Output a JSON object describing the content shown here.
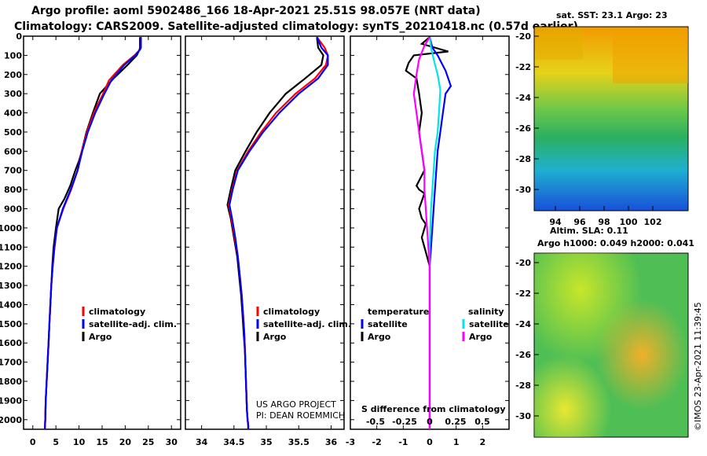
{
  "header": {
    "title_line1": "Argo profile: aoml 5902486_166 18-Apr-2021 25.51S 98.057E (NRT data)",
    "title_line2": "Climatology: CARS2009. Satellite-adjusted climatology: synTS_20210418.nc (0.57d earlier)"
  },
  "colors": {
    "climatology": "#ff0000",
    "satellite": "#0000ff",
    "argo": "#000000",
    "salinity_sat": "#00e5e5",
    "salinity_argo": "#ff00ff"
  },
  "chart_data": [
    {
      "type": "line",
      "name": "temperature-profile",
      "xlabel": "",
      "ylabel": "",
      "xlim": [
        -2,
        32
      ],
      "ylim": [
        2050,
        0
      ],
      "xticks": [
        "0",
        "5",
        "10",
        "15",
        "20",
        "25",
        "30"
      ],
      "xtick_values": [
        0,
        5,
        10,
        15,
        20,
        25,
        30
      ],
      "yticks": [
        "0",
        "100",
        "200",
        "300",
        "400",
        "500",
        "600",
        "700",
        "800",
        "900",
        "1000",
        "1100",
        "1200",
        "1300",
        "1400",
        "1500",
        "1600",
        "1700",
        "1800",
        "1900",
        "2000"
      ],
      "legend": [
        "climatology",
        "satellite-adj. clim.",
        "Argo"
      ],
      "series": [
        {
          "name": "Argo",
          "color": "#000000",
          "x": [
            23.2,
            23.2,
            23.1,
            22.5,
            20.5,
            17.5,
            14.5,
            13.0,
            11.6,
            10.6,
            10.0,
            9.2,
            8.1,
            6.8,
            5.6,
            5.0,
            4.5,
            4.2,
            4.0,
            3.8,
            3.6,
            3.4,
            3.2,
            3.0,
            2.8,
            2.7,
            2.6
          ],
          "y": [
            5,
            60,
            70,
            100,
            150,
            220,
            300,
            400,
            500,
            600,
            650,
            700,
            780,
            850,
            900,
            1000,
            1100,
            1200,
            1300,
            1400,
            1500,
            1600,
            1700,
            1800,
            1900,
            2000,
            2050
          ]
        },
        {
          "name": "climatology",
          "color": "#ff0000",
          "x": [
            23.4,
            23.4,
            23.2,
            22.0,
            19.5,
            16.5,
            15.2,
            13.2,
            11.7,
            10.6,
            9.7,
            8.3,
            6.6,
            5.2,
            4.7,
            4.3,
            4.0,
            3.8,
            3.6,
            3.4,
            3.2,
            3.0,
            2.8,
            2.7,
            2.6
          ],
          "y": [
            5,
            60,
            70,
            100,
            150,
            230,
            300,
            400,
            500,
            600,
            700,
            800,
            900,
            1000,
            1100,
            1200,
            1300,
            1400,
            1500,
            1600,
            1700,
            1800,
            1900,
            2000,
            2050
          ]
        },
        {
          "name": "satellite-adj. clim.",
          "color": "#0000ff",
          "x": [
            23.4,
            23.4,
            23.2,
            22.2,
            19.8,
            17.0,
            15.5,
            13.5,
            11.9,
            10.7,
            9.7,
            8.2,
            6.5,
            5.2,
            4.7,
            4.3,
            4.0,
            3.8,
            3.6,
            3.4,
            3.2,
            3.0,
            2.8,
            2.7,
            2.6
          ],
          "y": [
            5,
            60,
            70,
            100,
            150,
            230,
            300,
            400,
            500,
            600,
            700,
            800,
            900,
            1000,
            1100,
            1200,
            1300,
            1400,
            1500,
            1600,
            1700,
            1800,
            1900,
            2000,
            2050
          ]
        }
      ]
    },
    {
      "type": "line",
      "name": "salinity-profile",
      "xlabel": "",
      "ylabel": "",
      "xlim": [
        33.75,
        36.2
      ],
      "ylim": [
        2050,
        0
      ],
      "xticks": [
        "34",
        "34.5",
        "35",
        "35.5",
        "36"
      ],
      "xtick_values": [
        34,
        34.5,
        35,
        35.5,
        36
      ],
      "legend": [
        "climatology",
        "satellite-adj. clim.",
        "Argo"
      ],
      "annotations": [
        "US ARGO PROJECT",
        "PI: DEAN ROEMMICH"
      ],
      "series": [
        {
          "name": "Argo",
          "color": "#000000",
          "x": [
            35.78,
            35.8,
            35.88,
            35.85,
            35.6,
            35.3,
            35.05,
            34.85,
            34.68,
            34.52,
            34.45,
            34.4,
            34.45,
            34.5,
            34.55,
            34.58,
            34.61,
            34.63,
            34.65,
            34.67,
            34.68,
            34.69,
            34.7,
            34.71,
            34.72,
            34.72
          ],
          "y": [
            5,
            60,
            100,
            150,
            220,
            300,
            400,
            500,
            600,
            700,
            800,
            880,
            950,
            1050,
            1150,
            1250,
            1350,
            1450,
            1550,
            1650,
            1750,
            1850,
            1950,
            2000,
            2030,
            2050
          ]
        },
        {
          "name": "climatology",
          "color": "#ff0000",
          "x": [
            35.78,
            35.9,
            35.95,
            35.92,
            35.75,
            35.45,
            35.15,
            34.92,
            34.72,
            34.55,
            34.47,
            34.42,
            34.46,
            34.51,
            34.56,
            34.59,
            34.62,
            34.64,
            34.66,
            34.67,
            34.68,
            34.69,
            34.7,
            34.71,
            34.72,
            34.72
          ],
          "y": [
            5,
            60,
            100,
            150,
            220,
            300,
            400,
            500,
            600,
            700,
            800,
            880,
            950,
            1050,
            1150,
            1250,
            1350,
            1450,
            1550,
            1650,
            1750,
            1850,
            1950,
            2000,
            2030,
            2050
          ]
        },
        {
          "name": "satellite-adj. clim.",
          "color": "#0000ff",
          "x": [
            35.78,
            35.85,
            35.95,
            35.95,
            35.8,
            35.5,
            35.2,
            34.95,
            34.74,
            34.56,
            34.48,
            34.43,
            34.47,
            34.52,
            34.56,
            34.59,
            34.62,
            34.64,
            34.66,
            34.67,
            34.68,
            34.69,
            34.7,
            34.71,
            34.72,
            34.72
          ],
          "y": [
            5,
            60,
            100,
            150,
            220,
            300,
            400,
            500,
            600,
            700,
            800,
            880,
            950,
            1050,
            1150,
            1250,
            1350,
            1450,
            1550,
            1650,
            1750,
            1850,
            1950,
            2000,
            2030,
            2050
          ]
        }
      ]
    },
    {
      "type": "line",
      "name": "difference-from-climatology",
      "xlabel": "S difference from climatology",
      "xlim": [
        -3,
        3
      ],
      "ylim": [
        2050,
        0
      ],
      "xticks": [
        "-3",
        "-2",
        "-1",
        "0",
        "1",
        "2"
      ],
      "xtick_values": [
        -3,
        -2,
        -1,
        0,
        1,
        2
      ],
      "sticks": [
        "-0.5",
        "-0.25",
        "0",
        "0.25",
        "0.5"
      ],
      "legend_groups": [
        "temperature",
        "salinity"
      ],
      "legend": [
        "satellite",
        "Argo",
        "satellite",
        "Argo"
      ],
      "series": [
        {
          "name": "temperature Argo",
          "color": "#000000",
          "x": [
            0,
            -0.3,
            0.7,
            -0.6,
            -0.8,
            -0.9,
            -0.5,
            -0.4,
            -0.3,
            -0.4,
            -0.3,
            -0.2,
            -0.5,
            -0.4,
            -0.2,
            -0.3,
            -0.35,
            -0.4,
            -0.3,
            -0.15,
            -0.3,
            -0.2,
            0,
            0,
            0,
            0,
            0,
            0,
            0,
            0
          ],
          "y": [
            5,
            40,
            80,
            100,
            140,
            180,
            220,
            300,
            400,
            500,
            600,
            700,
            780,
            800,
            820,
            860,
            880,
            900,
            950,
            980,
            1050,
            1100,
            1200,
            1300,
            1400,
            1500,
            1600,
            1700,
            1900,
            2050
          ]
        },
        {
          "name": "temperature satellite",
          "color": "#0000ff",
          "x": [
            0,
            0.1,
            0.3,
            0.6,
            0.8,
            0.6,
            0.5,
            0.4,
            0.3,
            0.25,
            0.2,
            0.15,
            0.1,
            0.05,
            0,
            0,
            0,
            0,
            0,
            0
          ],
          "y": [
            5,
            60,
            100,
            180,
            260,
            300,
            400,
            500,
            600,
            700,
            800,
            900,
            1000,
            1100,
            1200,
            1300,
            1500,
            1700,
            1900,
            2050
          ]
        },
        {
          "name": "salinity satellite",
          "color": "#00e5e5",
          "x": [
            0,
            0.05,
            0.15,
            0.3,
            0.4,
            0.35,
            0.3,
            0.2,
            0.15,
            0.1,
            0.05,
            0,
            0,
            0,
            0
          ],
          "y": [
            5,
            60,
            120,
            200,
            280,
            400,
            500,
            600,
            700,
            800,
            900,
            1100,
            1300,
            1600,
            2050
          ]
        },
        {
          "name": "salinity Argo",
          "color": "#ff00ff",
          "x": [
            0,
            -0.2,
            -0.4,
            -0.5,
            -0.6,
            -0.5,
            -0.4,
            -0.3,
            -0.2,
            -0.2,
            -0.15,
            -0.1,
            0,
            0,
            0
          ],
          "y": [
            5,
            50,
            120,
            200,
            300,
            400,
            500,
            600,
            700,
            800,
            900,
            1000,
            1200,
            1600,
            2050
          ]
        }
      ]
    }
  ],
  "maps": {
    "sst": {
      "title": "sat. SST: 23.1 Argo: 23",
      "xticks": [
        "94",
        "96",
        "98",
        "100",
        "102"
      ],
      "yticks": [
        "-20",
        "-22",
        "-24",
        "-26",
        "-28",
        "-30"
      ],
      "colorbar": "#f0a000"
    },
    "sla": {
      "title1": "Altim. SLA: 0.11",
      "title2": "Argo h1000: 0.049 h2000: 0.041",
      "yticks": [
        "-20",
        "-22",
        "-24",
        "-26",
        "-28",
        "-30"
      ]
    }
  },
  "footer": {
    "credit": "©IMOS 23-Apr-2021 11:39:45"
  }
}
